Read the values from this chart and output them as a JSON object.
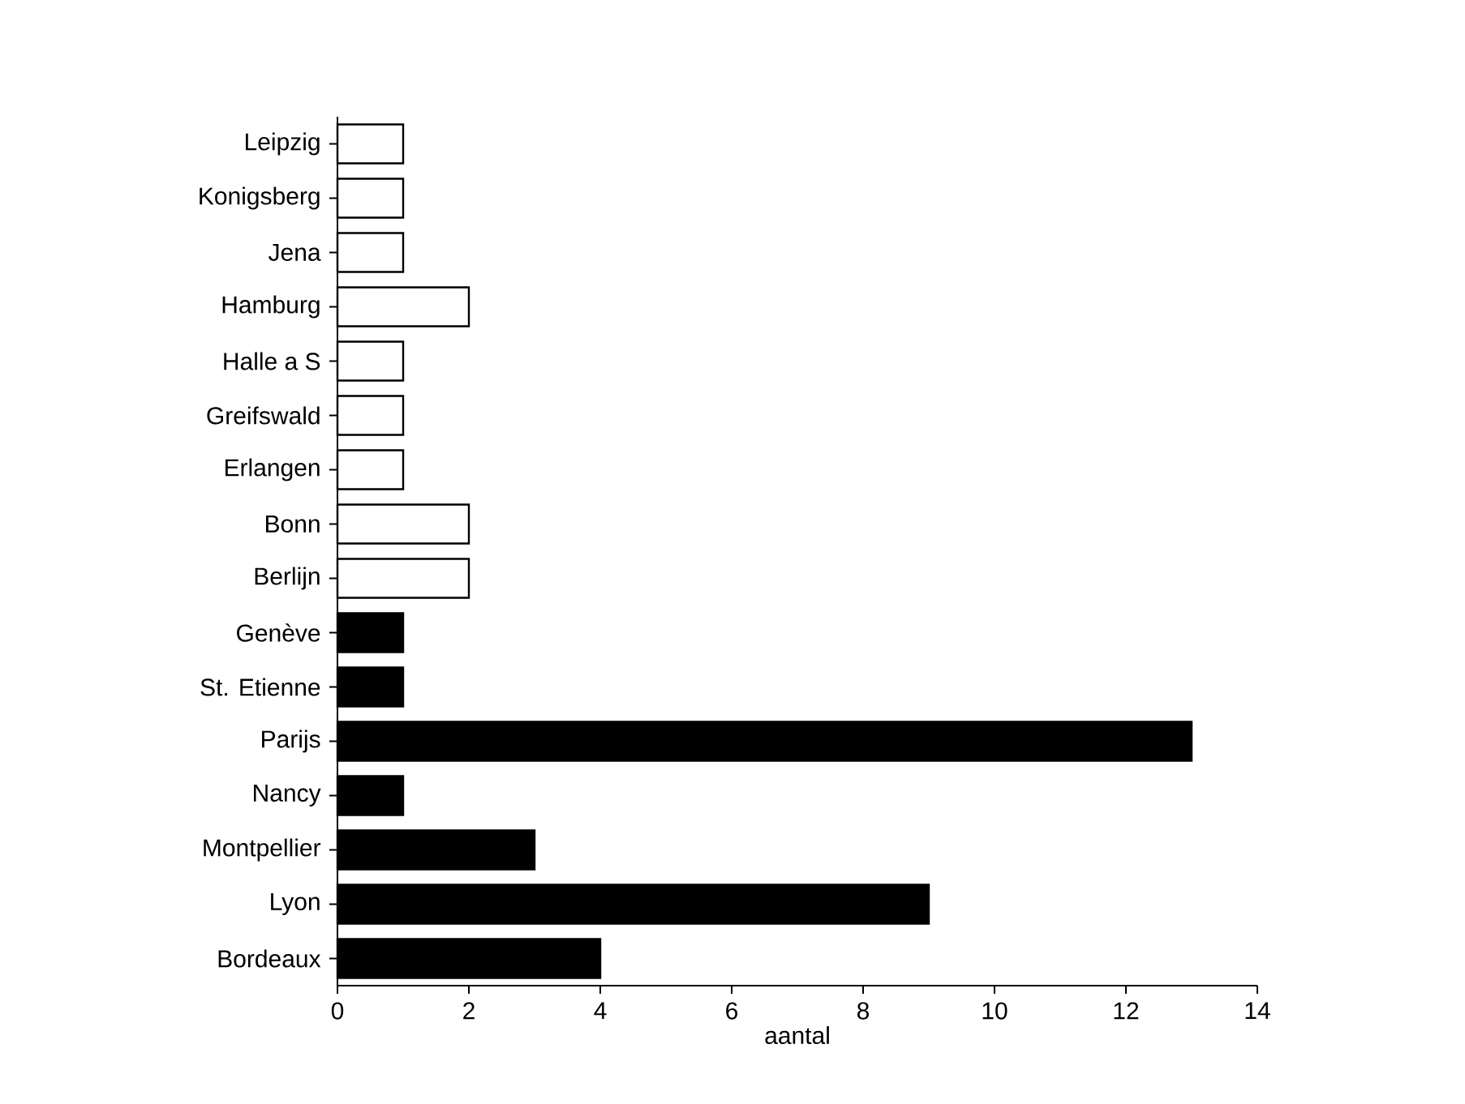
{
  "chart_data": {
    "type": "bar",
    "orientation": "horizontal",
    "xlabel": "aantal",
    "categories": [
      "Leipzig",
      "Konigsberg",
      "Jena",
      "Hamburg",
      "Halle a S",
      "Greifswald",
      "Erlangen",
      "Bonn",
      "Berlijn",
      "Genève",
      "St. Etienne",
      "Parijs",
      "Nancy",
      "Montpellier",
      "Lyon",
      "Bordeaux"
    ],
    "values": [
      1,
      1,
      1,
      2,
      1,
      1,
      1,
      2,
      2,
      1,
      1,
      13,
      1,
      3,
      9,
      4
    ],
    "colors": [
      "#ffffff",
      "#ffffff",
      "#ffffff",
      "#ffffff",
      "#ffffff",
      "#ffffff",
      "#ffffff",
      "#ffffff",
      "#ffffff",
      "#000000",
      "#000000",
      "#000000",
      "#000000",
      "#000000",
      "#000000",
      "#000000"
    ],
    "xlim": [
      0,
      14
    ],
    "xticks": [
      0,
      2,
      4,
      6,
      8,
      10,
      12,
      14
    ]
  }
}
